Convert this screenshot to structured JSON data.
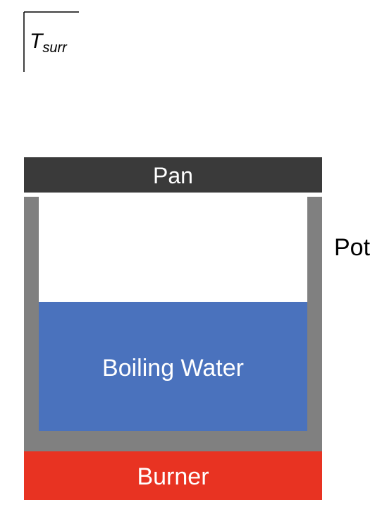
{
  "diagram": {
    "tsurr": {
      "main": "T",
      "subscript": "surr"
    },
    "pan_label": "Pan",
    "pot_label": "Pot",
    "water_label": "Boiling Water",
    "burner_label": "Burner"
  },
  "colors": {
    "pan": "#3a3a3a",
    "pot": "#808080",
    "water": "#4a72bd",
    "burner": "#e83322",
    "text_light": "#ffffff",
    "text_dark": "#000000",
    "background": "#ffffff"
  }
}
